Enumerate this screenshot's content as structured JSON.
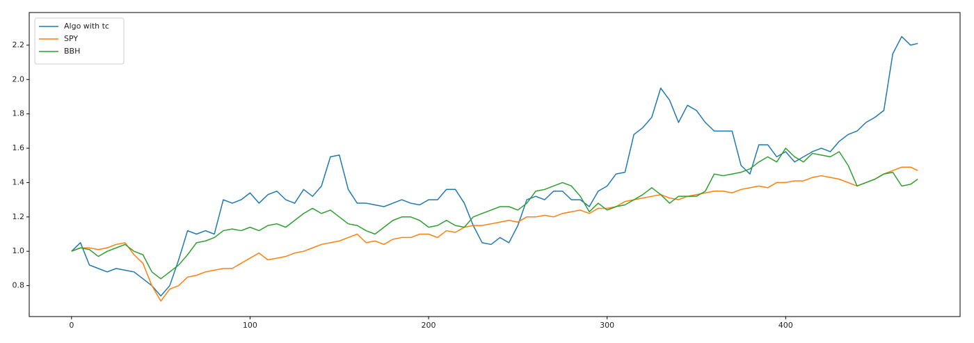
{
  "chart_data": {
    "type": "line",
    "x": [
      0,
      5,
      10,
      15,
      20,
      25,
      30,
      35,
      40,
      45,
      50,
      55,
      60,
      65,
      70,
      75,
      80,
      85,
      90,
      95,
      100,
      105,
      110,
      115,
      120,
      125,
      130,
      135,
      140,
      145,
      150,
      155,
      160,
      165,
      170,
      175,
      180,
      185,
      190,
      195,
      200,
      205,
      210,
      215,
      220,
      225,
      230,
      235,
      240,
      245,
      250,
      255,
      260,
      265,
      270,
      275,
      280,
      285,
      290,
      295,
      300,
      305,
      310,
      315,
      320,
      325,
      330,
      335,
      340,
      345,
      350,
      355,
      360,
      365,
      370,
      375,
      380,
      385,
      390,
      395,
      400,
      405,
      410,
      415,
      420,
      425,
      430,
      435,
      440,
      445,
      450,
      455,
      460,
      465,
      470,
      474
    ],
    "series": [
      {
        "name": "Algo with tc",
        "color": "#1f77b4",
        "values": [
          1.0,
          1.05,
          0.92,
          0.9,
          0.88,
          0.9,
          0.89,
          0.88,
          0.84,
          0.8,
          0.74,
          0.8,
          0.95,
          1.12,
          1.1,
          1.12,
          1.1,
          1.3,
          1.28,
          1.3,
          1.34,
          1.28,
          1.33,
          1.35,
          1.3,
          1.28,
          1.36,
          1.32,
          1.38,
          1.55,
          1.56,
          1.36,
          1.28,
          1.28,
          1.27,
          1.26,
          1.28,
          1.3,
          1.28,
          1.27,
          1.3,
          1.3,
          1.36,
          1.36,
          1.28,
          1.15,
          1.05,
          1.04,
          1.08,
          1.05,
          1.15,
          1.3,
          1.32,
          1.3,
          1.35,
          1.35,
          1.3,
          1.3,
          1.26,
          1.35,
          1.38,
          1.45,
          1.46,
          1.68,
          1.72,
          1.78,
          1.95,
          1.88,
          1.75,
          1.85,
          1.82,
          1.75,
          1.7,
          1.7,
          1.7,
          1.5,
          1.45,
          1.62,
          1.62,
          1.55,
          1.58,
          1.52,
          1.55,
          1.58,
          1.6,
          1.58,
          1.64,
          1.68,
          1.7,
          1.75,
          1.78,
          1.82,
          2.15,
          2.25,
          2.2,
          2.21
        ]
      },
      {
        "name": "SPY",
        "color": "#ff7f0e",
        "values": [
          1.0,
          1.02,
          1.02,
          1.01,
          1.02,
          1.04,
          1.05,
          0.98,
          0.93,
          0.8,
          0.71,
          0.78,
          0.8,
          0.85,
          0.86,
          0.88,
          0.89,
          0.9,
          0.9,
          0.93,
          0.96,
          0.99,
          0.95,
          0.96,
          0.97,
          0.99,
          1.0,
          1.02,
          1.04,
          1.05,
          1.06,
          1.08,
          1.1,
          1.05,
          1.06,
          1.04,
          1.07,
          1.08,
          1.08,
          1.1,
          1.1,
          1.08,
          1.12,
          1.11,
          1.14,
          1.15,
          1.15,
          1.16,
          1.17,
          1.18,
          1.17,
          1.2,
          1.2,
          1.21,
          1.2,
          1.22,
          1.23,
          1.24,
          1.22,
          1.25,
          1.25,
          1.26,
          1.29,
          1.3,
          1.31,
          1.32,
          1.33,
          1.31,
          1.3,
          1.32,
          1.33,
          1.34,
          1.35,
          1.35,
          1.34,
          1.36,
          1.37,
          1.38,
          1.37,
          1.4,
          1.4,
          1.41,
          1.41,
          1.43,
          1.44,
          1.43,
          1.42,
          1.4,
          1.38,
          1.4,
          1.42,
          1.45,
          1.47,
          1.49,
          1.49,
          1.47
        ]
      },
      {
        "name": "BBH",
        "color": "#2ca02c",
        "values": [
          1.0,
          1.02,
          1.01,
          0.97,
          1.0,
          1.02,
          1.04,
          1.0,
          0.98,
          0.88,
          0.84,
          0.88,
          0.92,
          0.98,
          1.05,
          1.06,
          1.08,
          1.12,
          1.13,
          1.12,
          1.14,
          1.12,
          1.15,
          1.16,
          1.14,
          1.18,
          1.22,
          1.25,
          1.22,
          1.24,
          1.2,
          1.16,
          1.15,
          1.12,
          1.1,
          1.14,
          1.18,
          1.2,
          1.2,
          1.18,
          1.14,
          1.15,
          1.18,
          1.15,
          1.14,
          1.2,
          1.22,
          1.24,
          1.26,
          1.26,
          1.24,
          1.28,
          1.35,
          1.36,
          1.38,
          1.4,
          1.38,
          1.32,
          1.23,
          1.28,
          1.24,
          1.26,
          1.27,
          1.3,
          1.33,
          1.37,
          1.33,
          1.28,
          1.32,
          1.32,
          1.32,
          1.35,
          1.45,
          1.44,
          1.45,
          1.46,
          1.48,
          1.52,
          1.55,
          1.52,
          1.6,
          1.55,
          1.52,
          1.57,
          1.56,
          1.55,
          1.58,
          1.5,
          1.38,
          1.4,
          1.42,
          1.45,
          1.46,
          1.38,
          1.39,
          1.42
        ]
      }
    ],
    "xlim": [
      -23.7,
      497.7
    ],
    "ylim": [
      0.62,
      2.39
    ],
    "xticks": [
      0,
      100,
      200,
      300,
      400
    ],
    "yticks": [
      {
        "value": 0.8,
        "label": "0.8"
      },
      {
        "value": 1.0,
        "label": "1.0"
      },
      {
        "value": 1.2,
        "label": "1.2"
      },
      {
        "value": 1.4,
        "label": "1.4"
      },
      {
        "value": 1.6,
        "label": "1.6"
      },
      {
        "value": 1.8,
        "label": "1.8"
      },
      {
        "value": 2.0,
        "label": "2.0"
      },
      {
        "value": 2.2,
        "label": "2.2"
      }
    ],
    "legend": "upper left",
    "grid": false
  }
}
